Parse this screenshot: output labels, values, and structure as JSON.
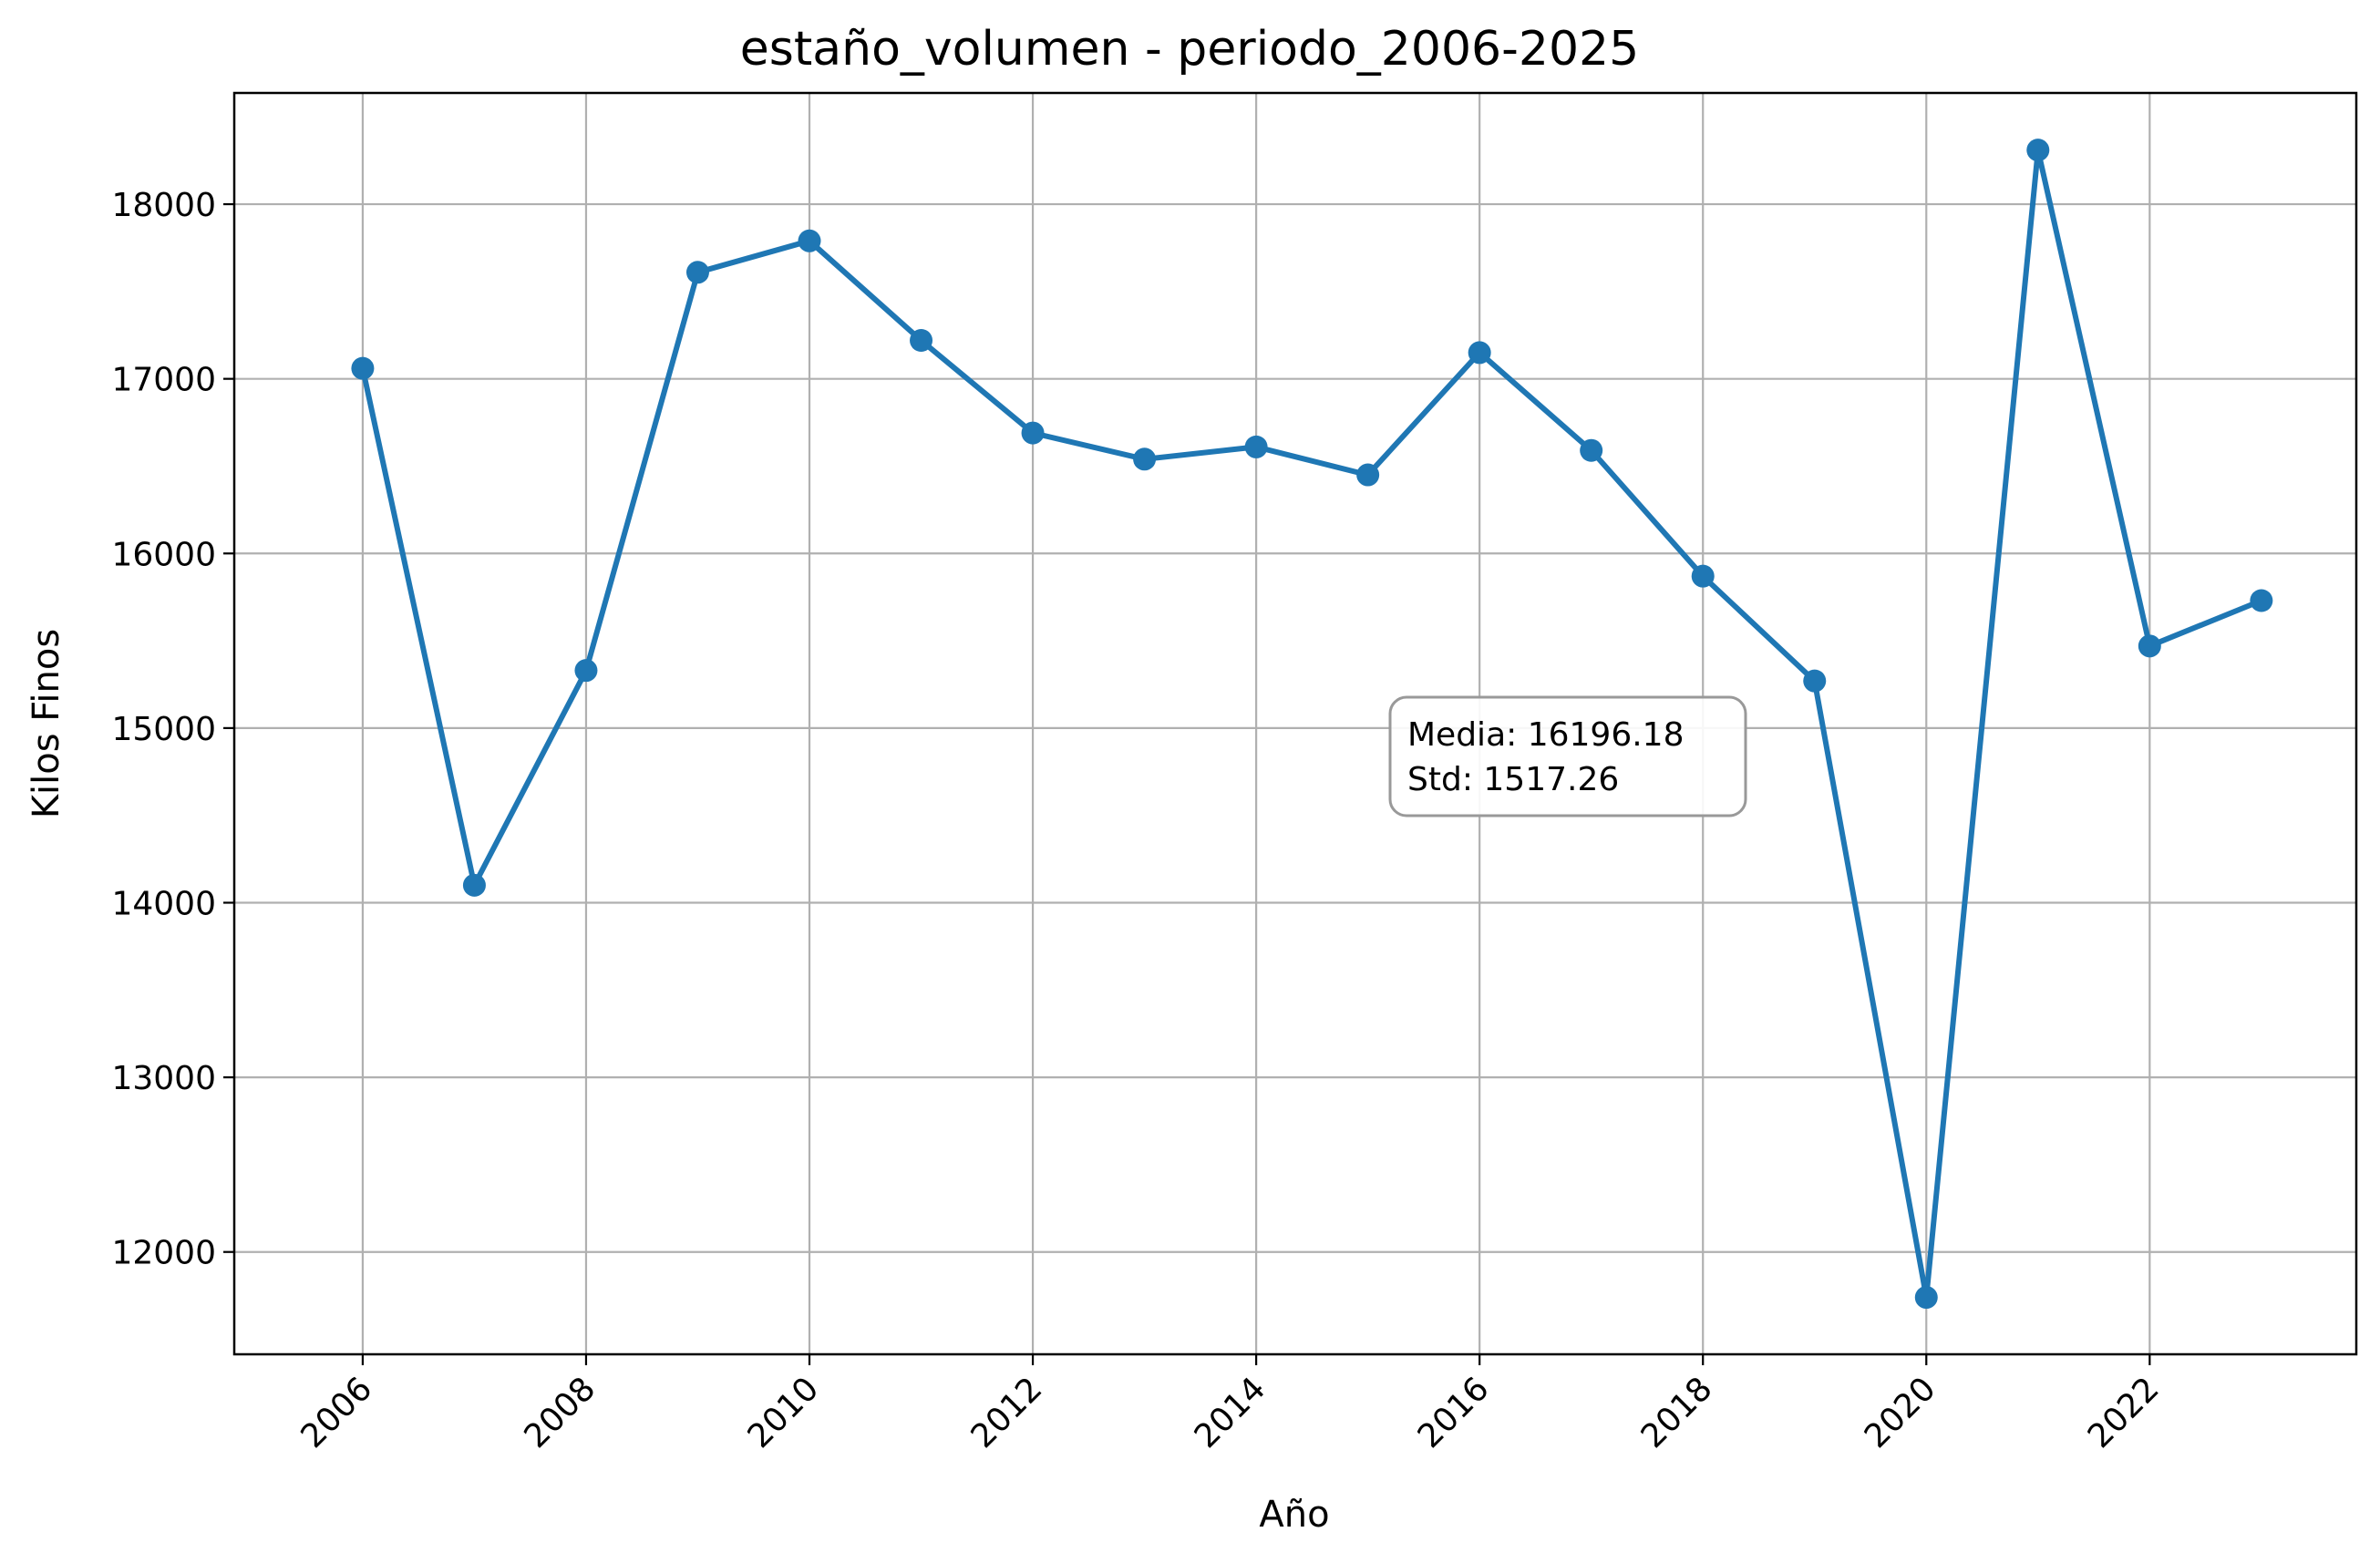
{
  "chart_data": {
    "type": "line",
    "title": "estaño_volumen - periodo_2006-2025",
    "xlabel": "Año",
    "ylabel": "Kilos Finos",
    "x": [
      2006,
      2007,
      2008,
      2009,
      2010,
      2011,
      2012,
      2013,
      2014,
      2015,
      2016,
      2017,
      2018,
      2019,
      2020,
      2021,
      2022,
      2023
    ],
    "series": [
      {
        "values": [
          17060,
          14100,
          15330,
          17610,
          17790,
          17220,
          16690,
          16540,
          16610,
          16450,
          17150,
          16590,
          15870,
          15270,
          11740,
          18310,
          15470,
          15730
        ],
        "color": "#1f77b4"
      }
    ],
    "xlim": [
      2004.85,
      2023.85
    ],
    "ylim": [
      11414,
      18637
    ],
    "xticks": [
      2006,
      2008,
      2010,
      2012,
      2014,
      2016,
      2018,
      2020,
      2022
    ],
    "yticks": [
      12000,
      13000,
      14000,
      15000,
      16000,
      17000,
      18000
    ],
    "grid": true,
    "marker": "circle",
    "annotation": {
      "lines": [
        "Media: 16196.18",
        "Std: 1517.26"
      ]
    }
  }
}
